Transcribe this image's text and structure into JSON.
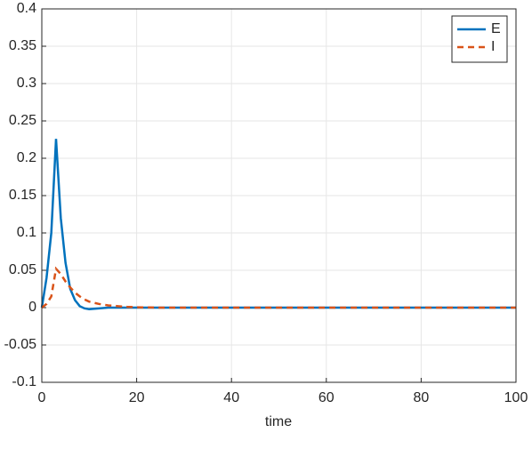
{
  "chart_data": {
    "type": "line",
    "xlabel": "time",
    "x": [
      0,
      1,
      2,
      3,
      4,
      5,
      6,
      7,
      8,
      9,
      10,
      12,
      14,
      16,
      18,
      20,
      25,
      30,
      40,
      50,
      60,
      70,
      80,
      90,
      100
    ],
    "series": [
      {
        "name": "E",
        "color": "#0072bd",
        "dash": "solid",
        "values": [
          0,
          0.04,
          0.1,
          0.226,
          0.12,
          0.06,
          0.025,
          0.01,
          0.002,
          -0.001,
          -0.002,
          -0.001,
          0,
          0,
          0,
          0,
          0,
          0,
          0,
          0,
          0,
          0,
          0,
          0,
          0
        ]
      },
      {
        "name": "I",
        "color": "#d95319",
        "dash": "dashed",
        "values": [
          0,
          0.005,
          0.015,
          0.052,
          0.045,
          0.035,
          0.027,
          0.02,
          0.015,
          0.011,
          0.008,
          0.005,
          0.003,
          0.002,
          0.001,
          0.0005,
          0,
          0,
          0,
          0,
          0,
          0,
          0,
          0,
          0
        ]
      }
    ],
    "xlim": [
      0,
      100
    ],
    "xticks": [
      0,
      20,
      40,
      60,
      80,
      100
    ],
    "ylim": [
      -0.1,
      0.4
    ],
    "yticks": [
      -0.1,
      -0.05,
      0,
      0.05,
      0.1,
      0.15,
      0.2,
      0.25,
      0.3,
      0.35,
      0.4
    ],
    "grid": true,
    "legend": "northeast"
  }
}
